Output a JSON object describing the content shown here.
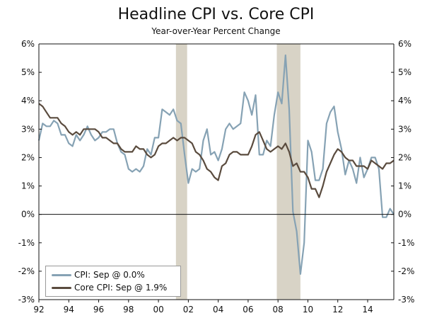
{
  "colors": {
    "cpi": "#86a2b4",
    "core": "#5a4b3e",
    "recession": "#d8d3c6",
    "axis": "#111111"
  },
  "chart_data": {
    "type": "line",
    "title": "Headline CPI vs. Core CPI",
    "subtitle": "Year-over-Year Percent Change",
    "xlabel": "",
    "ylabel": "",
    "xlim": [
      1992.0,
      2015.75
    ],
    "ylim": [
      -3,
      6
    ],
    "x_ticks": [
      1992,
      1994,
      1996,
      1998,
      2000,
      2002,
      2004,
      2006,
      2008,
      2010,
      2012,
      2014
    ],
    "x_tick_labels": [
      "92",
      "94",
      "96",
      "98",
      "00",
      "02",
      "04",
      "06",
      "08",
      "10",
      "12",
      "14"
    ],
    "y_ticks": [
      -3,
      -2,
      -1,
      0,
      1,
      2,
      3,
      4,
      5,
      6
    ],
    "y_tick_labels": [
      "-3%",
      "-2%",
      "-1%",
      "0%",
      "1%",
      "2%",
      "3%",
      "4%",
      "5%",
      "6%"
    ],
    "recessions": [
      [
        2001.17,
        2001.92
      ],
      [
        2007.92,
        2009.5
      ]
    ],
    "legend_position": "bottom-left",
    "grid": false,
    "series": [
      {
        "name": "CPI: Sep @ 0.0%",
        "color_key": "cpi",
        "points": [
          [
            1992.0,
            2.6
          ],
          [
            1992.25,
            3.2
          ],
          [
            1992.5,
            3.1
          ],
          [
            1992.75,
            3.1
          ],
          [
            1993.0,
            3.3
          ],
          [
            1993.25,
            3.2
          ],
          [
            1993.5,
            2.8
          ],
          [
            1993.75,
            2.8
          ],
          [
            1994.0,
            2.5
          ],
          [
            1994.25,
            2.4
          ],
          [
            1994.5,
            2.8
          ],
          [
            1994.75,
            2.6
          ],
          [
            1995.0,
            2.8
          ],
          [
            1995.25,
            3.1
          ],
          [
            1995.5,
            2.8
          ],
          [
            1995.75,
            2.6
          ],
          [
            1996.0,
            2.7
          ],
          [
            1996.25,
            2.9
          ],
          [
            1996.5,
            2.9
          ],
          [
            1996.75,
            3.0
          ],
          [
            1997.0,
            3.0
          ],
          [
            1997.25,
            2.5
          ],
          [
            1997.5,
            2.2
          ],
          [
            1997.75,
            2.1
          ],
          [
            1998.0,
            1.6
          ],
          [
            1998.25,
            1.5
          ],
          [
            1998.5,
            1.6
          ],
          [
            1998.75,
            1.5
          ],
          [
            1999.0,
            1.7
          ],
          [
            1999.25,
            2.3
          ],
          [
            1999.5,
            2.1
          ],
          [
            1999.75,
            2.7
          ],
          [
            2000.0,
            2.7
          ],
          [
            2000.25,
            3.7
          ],
          [
            2000.5,
            3.6
          ],
          [
            2000.75,
            3.5
          ],
          [
            2001.0,
            3.7
          ],
          [
            2001.25,
            3.3
          ],
          [
            2001.5,
            3.2
          ],
          [
            2001.75,
            2.1
          ],
          [
            2002.0,
            1.1
          ],
          [
            2002.25,
            1.6
          ],
          [
            2002.5,
            1.5
          ],
          [
            2002.75,
            1.6
          ],
          [
            2003.0,
            2.6
          ],
          [
            2003.25,
            3.0
          ],
          [
            2003.5,
            2.1
          ],
          [
            2003.75,
            2.2
          ],
          [
            2004.0,
            1.9
          ],
          [
            2004.25,
            2.3
          ],
          [
            2004.5,
            3.0
          ],
          [
            2004.75,
            3.2
          ],
          [
            2005.0,
            3.0
          ],
          [
            2005.25,
            3.1
          ],
          [
            2005.5,
            3.2
          ],
          [
            2005.75,
            4.3
          ],
          [
            2006.0,
            4.0
          ],
          [
            2006.25,
            3.5
          ],
          [
            2006.5,
            4.2
          ],
          [
            2006.75,
            2.1
          ],
          [
            2007.0,
            2.1
          ],
          [
            2007.25,
            2.6
          ],
          [
            2007.5,
            2.4
          ],
          [
            2007.75,
            3.5
          ],
          [
            2008.0,
            4.3
          ],
          [
            2008.25,
            3.9
          ],
          [
            2008.5,
            5.6
          ],
          [
            2008.75,
            3.7
          ],
          [
            2009.0,
            0.1
          ],
          [
            2009.25,
            -0.6
          ],
          [
            2009.5,
            -2.1
          ],
          [
            2009.75,
            -1.0
          ],
          [
            2010.0,
            2.6
          ],
          [
            2010.25,
            2.2
          ],
          [
            2010.5,
            1.2
          ],
          [
            2010.75,
            1.2
          ],
          [
            2011.0,
            1.6
          ],
          [
            2011.25,
            3.2
          ],
          [
            2011.5,
            3.6
          ],
          [
            2011.75,
            3.8
          ],
          [
            2012.0,
            2.9
          ],
          [
            2012.25,
            2.3
          ],
          [
            2012.5,
            1.4
          ],
          [
            2012.75,
            1.9
          ],
          [
            2013.0,
            1.6
          ],
          [
            2013.25,
            1.1
          ],
          [
            2013.5,
            2.0
          ],
          [
            2013.75,
            1.3
          ],
          [
            2014.0,
            1.6
          ],
          [
            2014.25,
            2.0
          ],
          [
            2014.5,
            2.0
          ],
          [
            2014.75,
            1.6
          ],
          [
            2015.0,
            -0.1
          ],
          [
            2015.25,
            -0.1
          ],
          [
            2015.5,
            0.2
          ],
          [
            2015.75,
            0.0
          ]
        ]
      },
      {
        "name": "Core CPI: Sep @ 1.9%",
        "color_key": "core",
        "points": [
          [
            1992.0,
            3.9
          ],
          [
            1992.25,
            3.8
          ],
          [
            1992.5,
            3.6
          ],
          [
            1992.75,
            3.4
          ],
          [
            1993.0,
            3.4
          ],
          [
            1993.25,
            3.4
          ],
          [
            1993.5,
            3.2
          ],
          [
            1993.75,
            3.1
          ],
          [
            1994.0,
            2.9
          ],
          [
            1994.25,
            2.8
          ],
          [
            1994.5,
            2.9
          ],
          [
            1994.75,
            2.8
          ],
          [
            1995.0,
            3.0
          ],
          [
            1995.25,
            3.0
          ],
          [
            1995.5,
            3.0
          ],
          [
            1995.75,
            3.0
          ],
          [
            1996.0,
            2.9
          ],
          [
            1996.25,
            2.7
          ],
          [
            1996.5,
            2.7
          ],
          [
            1996.75,
            2.6
          ],
          [
            1997.0,
            2.5
          ],
          [
            1997.25,
            2.5
          ],
          [
            1997.5,
            2.3
          ],
          [
            1997.75,
            2.2
          ],
          [
            1998.0,
            2.2
          ],
          [
            1998.25,
            2.2
          ],
          [
            1998.5,
            2.4
          ],
          [
            1998.75,
            2.3
          ],
          [
            1999.0,
            2.3
          ],
          [
            1999.25,
            2.1
          ],
          [
            1999.5,
            2.0
          ],
          [
            1999.75,
            2.1
          ],
          [
            2000.0,
            2.4
          ],
          [
            2000.25,
            2.5
          ],
          [
            2000.5,
            2.5
          ],
          [
            2000.75,
            2.6
          ],
          [
            2001.0,
            2.7
          ],
          [
            2001.25,
            2.6
          ],
          [
            2001.5,
            2.7
          ],
          [
            2001.75,
            2.7
          ],
          [
            2002.0,
            2.6
          ],
          [
            2002.25,
            2.5
          ],
          [
            2002.5,
            2.2
          ],
          [
            2002.75,
            2.1
          ],
          [
            2003.0,
            1.9
          ],
          [
            2003.25,
            1.6
          ],
          [
            2003.5,
            1.5
          ],
          [
            2003.75,
            1.3
          ],
          [
            2004.0,
            1.2
          ],
          [
            2004.25,
            1.7
          ],
          [
            2004.5,
            1.8
          ],
          [
            2004.75,
            2.1
          ],
          [
            2005.0,
            2.2
          ],
          [
            2005.25,
            2.2
          ],
          [
            2005.5,
            2.1
          ],
          [
            2005.75,
            2.1
          ],
          [
            2006.0,
            2.1
          ],
          [
            2006.25,
            2.4
          ],
          [
            2006.5,
            2.8
          ],
          [
            2006.75,
            2.9
          ],
          [
            2007.0,
            2.6
          ],
          [
            2007.25,
            2.3
          ],
          [
            2007.5,
            2.2
          ],
          [
            2007.75,
            2.3
          ],
          [
            2008.0,
            2.4
          ],
          [
            2008.25,
            2.3
          ],
          [
            2008.5,
            2.5
          ],
          [
            2008.75,
            2.2
          ],
          [
            2009.0,
            1.7
          ],
          [
            2009.25,
            1.8
          ],
          [
            2009.5,
            1.5
          ],
          [
            2009.75,
            1.5
          ],
          [
            2010.0,
            1.3
          ],
          [
            2010.25,
            0.9
          ],
          [
            2010.5,
            0.9
          ],
          [
            2010.75,
            0.6
          ],
          [
            2011.0,
            1.0
          ],
          [
            2011.25,
            1.5
          ],
          [
            2011.5,
            1.8
          ],
          [
            2011.75,
            2.1
          ],
          [
            2012.0,
            2.3
          ],
          [
            2012.25,
            2.2
          ],
          [
            2012.5,
            2.0
          ],
          [
            2012.75,
            1.9
          ],
          [
            2013.0,
            1.9
          ],
          [
            2013.25,
            1.7
          ],
          [
            2013.5,
            1.7
          ],
          [
            2013.75,
            1.7
          ],
          [
            2014.0,
            1.6
          ],
          [
            2014.25,
            1.9
          ],
          [
            2014.5,
            1.8
          ],
          [
            2014.75,
            1.7
          ],
          [
            2015.0,
            1.6
          ],
          [
            2015.25,
            1.8
          ],
          [
            2015.5,
            1.8
          ],
          [
            2015.75,
            1.9
          ]
        ]
      }
    ]
  }
}
